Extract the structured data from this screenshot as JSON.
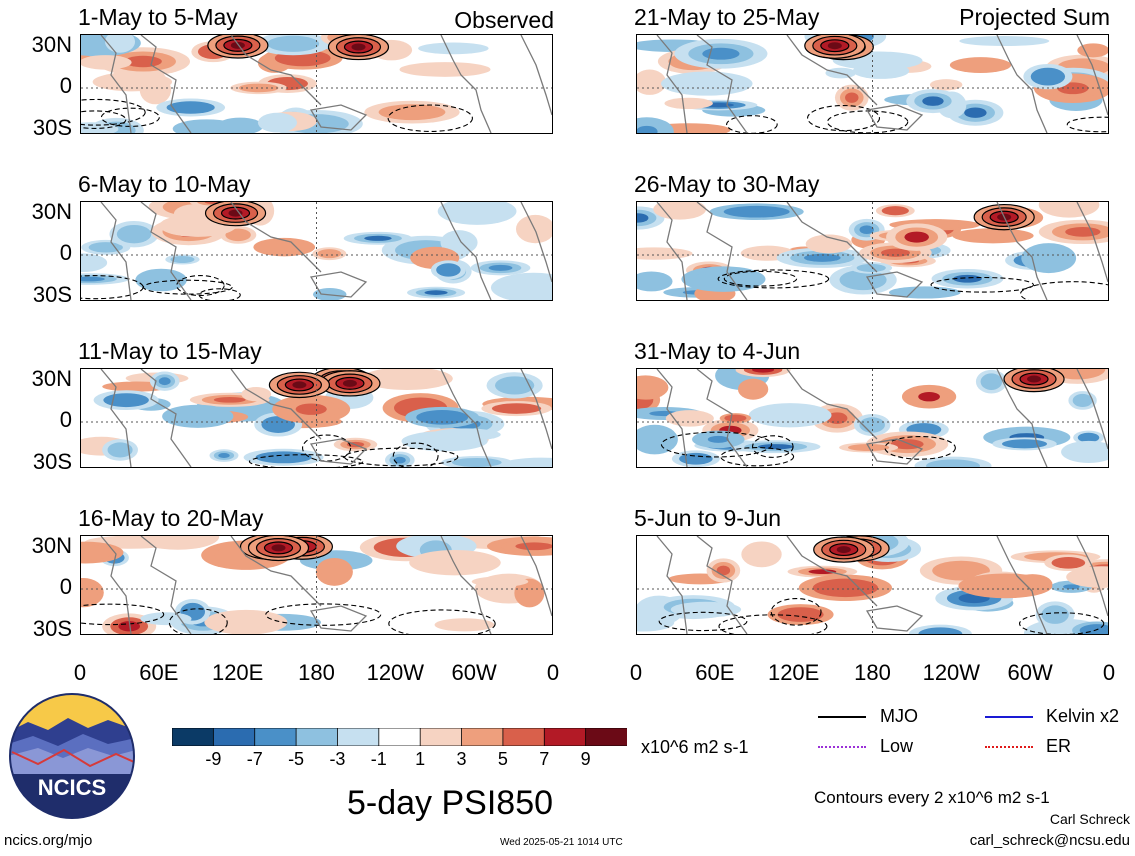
{
  "source": "Observed",
  "projected": "Projected Sum",
  "panels_left": [
    {
      "title": "1-May to 5-May"
    },
    {
      "title": "6-May to 10-May"
    },
    {
      "title": "11-May to 15-May"
    },
    {
      "title": "16-May to 20-May"
    }
  ],
  "panels_right": [
    {
      "title": "21-May to 25-May"
    },
    {
      "title": "26-May to 30-May"
    },
    {
      "title": "31-May to 4-Jun"
    },
    {
      "title": "5-Jun to 9-Jun"
    }
  ],
  "lat_labels": [
    "30N",
    "0",
    "30S"
  ],
  "lon_labels": [
    "0",
    "60E",
    "120E",
    "180",
    "120W",
    "60W",
    "0"
  ],
  "colorbar": {
    "colors": [
      "#0b3a66",
      "#2b6cb0",
      "#4a90c8",
      "#8ec1e0",
      "#c6e0f0",
      "#ffffff",
      "#f6d3c2",
      "#ee9f7d",
      "#d9604b",
      "#b31a26",
      "#6b0a16"
    ],
    "labels": [
      "-9",
      "-7",
      "-5",
      "-3",
      "-1",
      "1",
      "3",
      "5",
      "7",
      "9"
    ],
    "units": "x10^6 m2 s-1"
  },
  "main_title": "5-day PSI850",
  "legend": [
    {
      "label": "MJO",
      "color": "#000000"
    },
    {
      "label": "Kelvin x2",
      "color": "#1a1ad4"
    },
    {
      "label": "Low",
      "color": "#9b30d8"
    },
    {
      "label": "ER",
      "color": "#e01a1a"
    }
  ],
  "contours_note": "Contours every 2 x10^6 m2 s-1",
  "author": "Carl Schreck",
  "email": "carl_schreck@ncsu.edu",
  "site": "ncics.org/mjo",
  "timestamp": "Wed 2025-05-21 1014 UTC",
  "logo_text": "NCICS"
}
